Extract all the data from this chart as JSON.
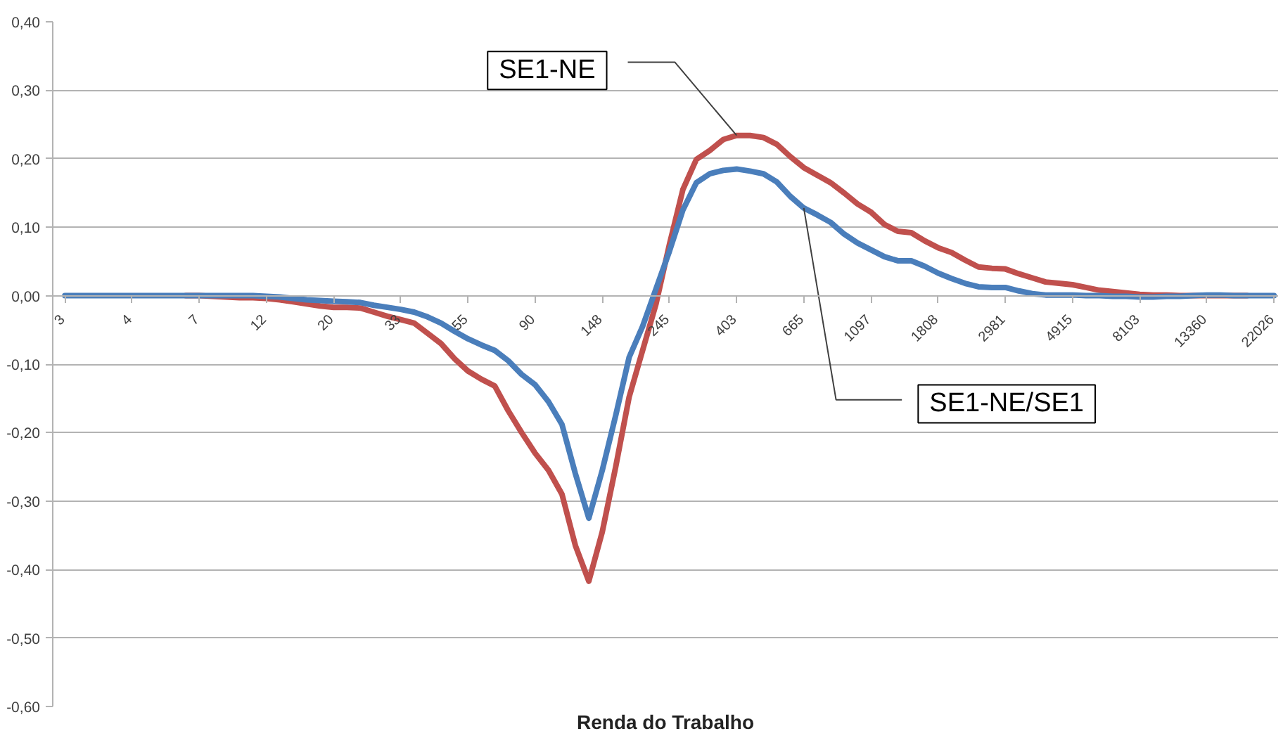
{
  "chart_data": {
    "type": "line",
    "xlabel": "Renda do Trabalho",
    "categories": [
      "3",
      null,
      null,
      null,
      null,
      "4",
      null,
      null,
      null,
      null,
      "7",
      null,
      null,
      null,
      null,
      "12",
      null,
      null,
      null,
      null,
      "20",
      null,
      null,
      null,
      null,
      "33",
      null,
      null,
      null,
      null,
      "55",
      null,
      null,
      null,
      null,
      "90",
      null,
      null,
      null,
      null,
      "148",
      null,
      null,
      null,
      null,
      "245",
      null,
      null,
      null,
      null,
      "403",
      null,
      null,
      null,
      null,
      "665",
      null,
      null,
      null,
      null,
      "1097",
      null,
      null,
      null,
      null,
      "1808",
      null,
      null,
      null,
      null,
      "2981",
      null,
      null,
      null,
      null,
      "4915",
      null,
      null,
      null,
      null,
      "8103",
      null,
      null,
      null,
      null,
      "13360",
      null,
      null,
      null,
      null,
      "22026"
    ],
    "series": [
      {
        "color": "#c0504d",
        "values": [
          null,
          null,
          null,
          null,
          null,
          null,
          null,
          null,
          null,
          0,
          0,
          -0.001,
          -0.002,
          -0.003,
          -0.003,
          -0.004,
          -0.006,
          -0.009,
          -0.012,
          -0.015,
          -0.017,
          -0.017,
          -0.018,
          -0.024,
          -0.03,
          -0.035,
          -0.04,
          -0.055,
          -0.07,
          -0.092,
          -0.11,
          -0.122,
          -0.132,
          -0.168,
          -0.2,
          -0.23,
          -0.255,
          -0.29,
          -0.365,
          -0.417,
          -0.345,
          -0.25,
          -0.148,
          -0.08,
          -0.012,
          0.075,
          0.155,
          0.199,
          0.212,
          0.228,
          0.234,
          0.234,
          0.231,
          0.221,
          0.203,
          0.187,
          0.176,
          0.165,
          0.15,
          0.134,
          0.122,
          0.104,
          0.094,
          0.092,
          0.08,
          0.07,
          0.063,
          0.052,
          0.042,
          0.04,
          0.039,
          0.032,
          0.026,
          0.02,
          0.018,
          0.016,
          0.012,
          0.008,
          0.006,
          0.004,
          0.002,
          0.001,
          0.001,
          0,
          0,
          0,
          0,
          0,
          0,
          null,
          null
        ]
      },
      {
        "color": "#4a7ebb",
        "values": [
          0,
          0,
          0,
          0,
          0,
          0,
          0,
          0,
          0,
          0,
          0,
          0,
          0,
          0,
          0,
          -0.001,
          -0.002,
          -0.004,
          -0.006,
          -0.007,
          -0.008,
          -0.009,
          -0.01,
          -0.014,
          -0.017,
          -0.02,
          -0.024,
          -0.031,
          -0.04,
          -0.052,
          -0.063,
          -0.072,
          -0.08,
          -0.095,
          -0.115,
          -0.13,
          -0.155,
          -0.188,
          -0.26,
          -0.325,
          -0.255,
          -0.175,
          -0.09,
          -0.045,
          0.01,
          0.065,
          0.125,
          0.165,
          0.178,
          0.183,
          0.185,
          0.182,
          0.178,
          0.166,
          0.145,
          0.128,
          0.118,
          0.107,
          0.09,
          0.077,
          0.067,
          0.057,
          0.051,
          0.051,
          0.043,
          0.033,
          0.025,
          0.018,
          0.013,
          0.012,
          0.012,
          0.007,
          0.003,
          0.001,
          0.001,
          0.001,
          0,
          0,
          -0.001,
          -0.001,
          -0.002,
          -0.002,
          -0.001,
          -0.001,
          0,
          0.001,
          0.001,
          0,
          0,
          0,
          0
        ]
      }
    ],
    "annotations": [
      {
        "text": "SE1-NE",
        "x": "403",
        "y": 0.234
      },
      {
        "text": "SE1-NE/SE1",
        "x": "665",
        "y": 0.128
      }
    ],
    "ylim": [
      -0.6,
      0.4
    ],
    "yticks": [
      {
        "value": -0.6,
        "label": "-0,60"
      },
      {
        "value": -0.5,
        "label": "-0,50"
      },
      {
        "value": -0.4,
        "label": "-0,40"
      },
      {
        "value": -0.3,
        "label": "-0,30"
      },
      {
        "value": -0.2,
        "label": "-0,20"
      },
      {
        "value": -0.1,
        "label": "-0,10"
      },
      {
        "value": 0,
        "label": "0,00"
      },
      {
        "value": 0.1,
        "label": "0,10"
      },
      {
        "value": 0.2,
        "label": "0,20"
      },
      {
        "value": 0.3,
        "label": "0,30"
      },
      {
        "value": 0.4,
        "label": "0,40"
      }
    ],
    "grid": "y"
  }
}
